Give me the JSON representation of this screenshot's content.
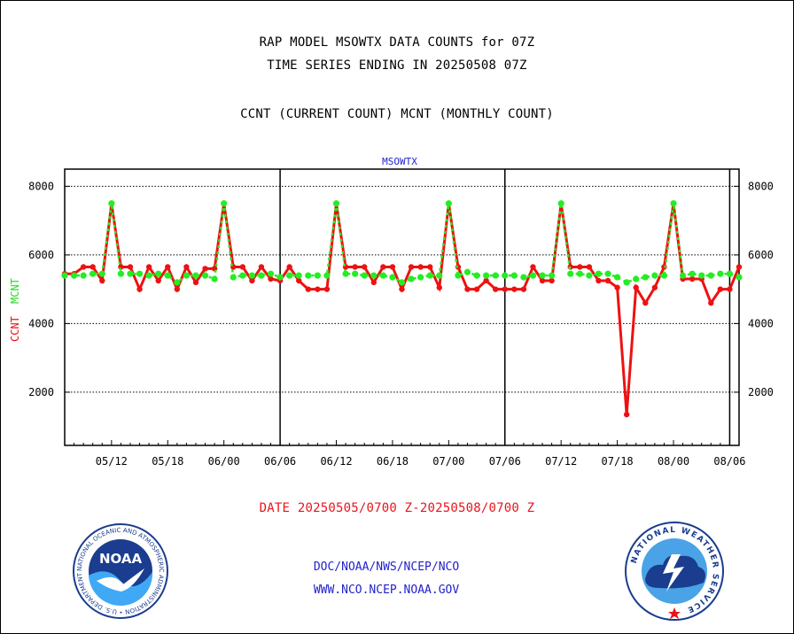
{
  "header": {
    "title_line1": "RAP MODEL MSOWTX DATA COUNTS for 07Z",
    "title_line2": "TIME SERIES ENDING IN 20250508 07Z",
    "subtitle": "CCNT (CURRENT COUNT) MCNT (MONTHLY COUNT)"
  },
  "footer": {
    "date_range": "DATE 20250505/0700 Z-20250508/0700 Z",
    "link1": "DOC/NOAA/NWS/NCEP/NCO",
    "link2": "WWW.NCO.NCEP.NOAA.GOV"
  },
  "logos": {
    "left_text": "NOAA",
    "left_ring": "NATIONAL OCEANIC AND ATMOSPHERIC ADMINISTRATION • U.S. DEPARTMENT OF COMMERCE •",
    "right_ring": "NATIONAL WEATHER SERVICE"
  },
  "chart_data": {
    "type": "line",
    "title": "MSOWTX",
    "ylabel_ccnt": "CCNT",
    "ylabel_mcnt": "MCNT",
    "x_tick_labels": [
      "05/12",
      "05/18",
      "06/00",
      "06/06",
      "06/12",
      "06/18",
      "07/00",
      "07/06",
      "07/12",
      "07/18",
      "08/00",
      "08/06"
    ],
    "y_ticks": [
      2000,
      4000,
      6000,
      8000
    ],
    "ylim": [
      450,
      8500
    ],
    "x_start_hour": 7,
    "x_end_hour": 79,
    "grid": true,
    "day_dividers": [
      "06/06",
      "07/06",
      "08/06"
    ],
    "colors": {
      "ccnt": "#ee1111",
      "mcnt": "#22ee22"
    },
    "series": [
      {
        "name": "CCNT",
        "values": [
          5450,
          5450,
          5650,
          5650,
          5250,
          7500,
          5650,
          5650,
          5000,
          5650,
          5250,
          5650,
          5000,
          5650,
          5200,
          5600,
          5600,
          7500,
          5650,
          5650,
          5250,
          5650,
          5300,
          5250,
          5650,
          5250,
          5000,
          5000,
          5000,
          7500,
          5650,
          5650,
          5650,
          5200,
          5650,
          5650,
          5000,
          5650,
          5650,
          5650,
          5050,
          7500,
          5650,
          5000,
          5000,
          5250,
          5000,
          5000,
          5000,
          5000,
          5650,
          5250,
          5250,
          7500,
          5650,
          5650,
          5650,
          5250,
          5250,
          5050,
          1350,
          5050,
          4600,
          5050,
          5650,
          7500,
          5300,
          5300,
          5300,
          4600,
          5000,
          5000,
          5650
        ]
      },
      {
        "name": "MCNT",
        "values": [
          5400,
          5400,
          5400,
          5450,
          5450,
          7500,
          5450,
          5450,
          5450,
          5400,
          5450,
          5400,
          5200,
          5400,
          5400,
          5400,
          5300,
          7500,
          5350,
          5400,
          5400,
          5400,
          5450,
          5350,
          5400,
          5400,
          5400,
          5400,
          5400,
          7500,
          5450,
          5450,
          5400,
          5400,
          5400,
          5350,
          5200,
          5300,
          5350,
          5400,
          5400,
          7500,
          5400,
          5500,
          5400,
          5400,
          5400,
          5400,
          5400,
          5350,
          5400,
          5400,
          5400,
          7500,
          5450,
          5450,
          5400,
          5450,
          5450,
          5350,
          5200,
          5300,
          5350,
          5400,
          5400,
          7500,
          5400,
          5450,
          5400,
          5400,
          5450,
          5450,
          5350
        ]
      }
    ]
  }
}
